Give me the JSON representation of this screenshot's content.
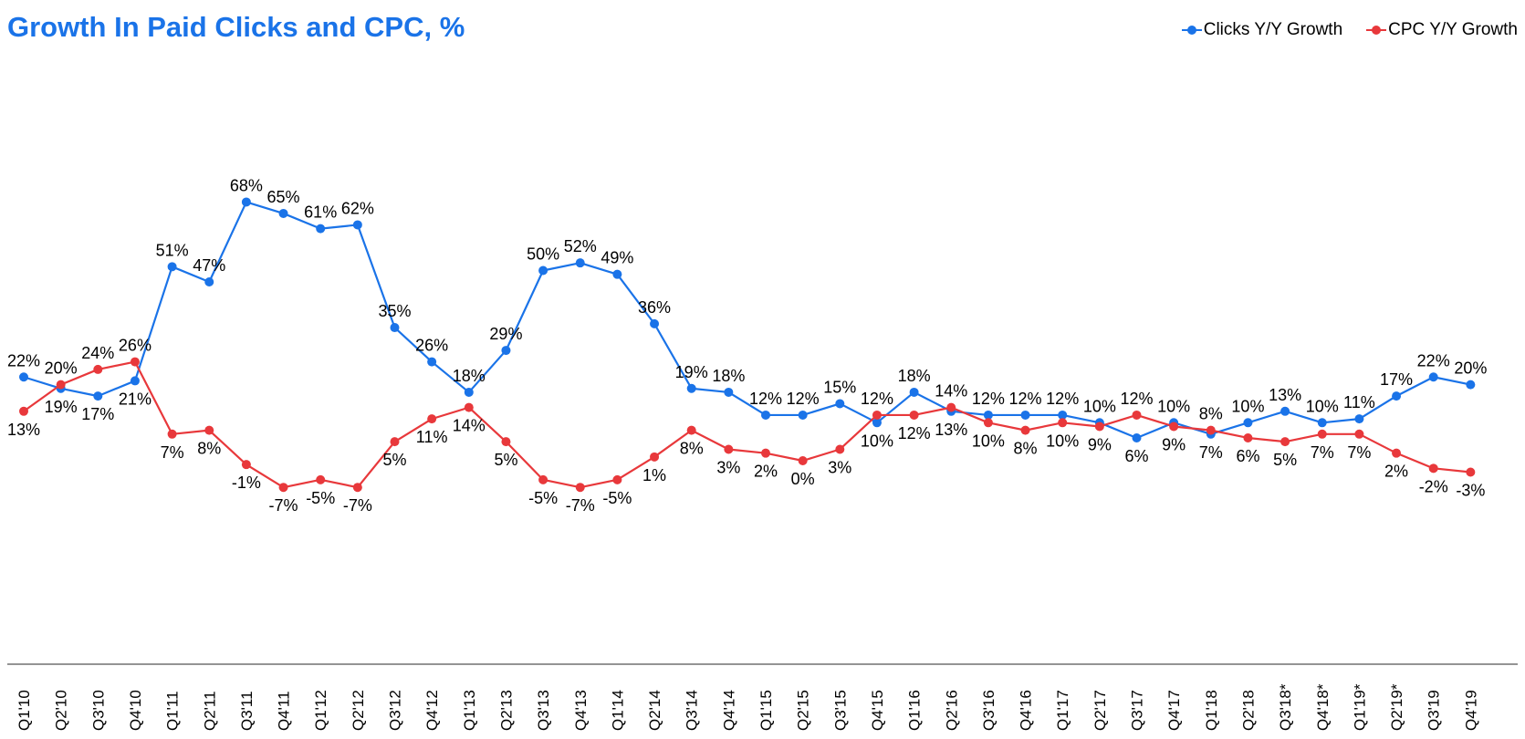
{
  "chart_data": {
    "type": "line",
    "title": "Growth In Paid Clicks and CPC, %",
    "categories": [
      "Q1'10",
      "Q2'10",
      "Q3'10",
      "Q4'10",
      "Q1'11",
      "Q2'11",
      "Q3'11",
      "Q4'11",
      "Q1'12",
      "Q2'12",
      "Q3'12",
      "Q4'12",
      "Q1'13",
      "Q2'13",
      "Q3'13",
      "Q4'13",
      "Q1'14",
      "Q2'14",
      "Q3'14",
      "Q4'14",
      "Q1'15",
      "Q2'15",
      "Q3'15",
      "Q4'15",
      "Q1'16",
      "Q2'16",
      "Q3'16",
      "Q4'16",
      "Q1'17",
      "Q2'17",
      "Q3'17",
      "Q4'17",
      "Q1'18",
      "Q2'18",
      "Q3'18*",
      "Q4'18*",
      "Q1'19*",
      "Q2'19*",
      "Q3'19",
      "Q4'19"
    ],
    "series": [
      {
        "name": "Clicks Y/Y Growth",
        "color": "#1a73e8",
        "values": [
          22,
          19,
          17,
          21,
          51,
          47,
          68,
          65,
          61,
          62,
          35,
          26,
          18,
          29,
          50,
          52,
          49,
          36,
          19,
          18,
          12,
          12,
          15,
          10,
          18,
          13,
          12,
          12,
          12,
          10,
          6,
          10,
          7,
          10,
          13,
          10,
          11,
          17,
          22,
          20
        ]
      },
      {
        "name": "CPC Y/Y Growth",
        "color": "#e8383b",
        "values": [
          13,
          20,
          24,
          26,
          7,
          8,
          -1,
          -7,
          -5,
          -7,
          5,
          11,
          14,
          5,
          -5,
          -7,
          -5,
          1,
          8,
          3,
          2,
          0,
          3,
          12,
          12,
          14,
          10,
          8,
          10,
          9,
          12,
          9,
          8,
          6,
          5,
          7,
          7,
          2,
          -2,
          -3
        ]
      }
    ],
    "value_suffix": "%",
    "xlabel": "",
    "ylabel": "",
    "ylim": [
      -60,
      116
    ],
    "grid": false,
    "legend": "top-right"
  }
}
